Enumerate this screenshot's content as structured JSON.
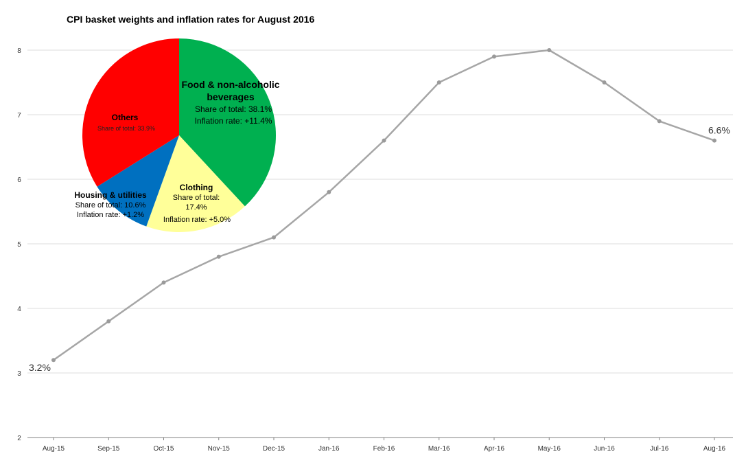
{
  "colors": {
    "line": "#a6a6a6",
    "marker": "#9a9a9a",
    "grid": "#dcdcdc",
    "axis": "#808080",
    "others": "#ff0000",
    "food": "#00b050",
    "clothing": "#ffff99",
    "housing": "#0070c0"
  },
  "chart_data": [
    {
      "type": "line",
      "title": "CPI basket weights and inflation rates for August 2016",
      "categories": [
        "Aug-15",
        "Sep-15",
        "Oct-15",
        "Nov-15",
        "Dec-15",
        "Jan-16",
        "Feb-16",
        "Mar-16",
        "Apr-16",
        "May-16",
        "Jun-16",
        "Jul-16",
        "Aug-16"
      ],
      "series": [
        {
          "values": [
            3.2,
            3.8,
            4.4,
            4.8,
            5.1,
            5.8,
            6.6,
            7.5,
            7.9,
            8.0,
            7.5,
            6.9,
            6.6
          ]
        }
      ],
      "y_ticks": [
        "2",
        "3",
        "4",
        "5",
        "6",
        "7",
        "8"
      ],
      "ylim": [
        2,
        8.6
      ],
      "grid": true,
      "first_label": "3.2%",
      "last_label": "6.6%"
    },
    {
      "type": "pie",
      "slices": [
        {
          "key": "food",
          "value": 38.1,
          "lines": [
            "Food & non-alcoholic",
            "beverages",
            "Share of total: 38.1%",
            "Inflation rate: +11.4%"
          ]
        },
        {
          "key": "clothing",
          "value": 17.4,
          "lines": [
            "Clothing",
            "Share of total:",
            "17.4%",
            "Inflation rate: +5.0%"
          ]
        },
        {
          "key": "housing",
          "value": 10.6,
          "lines": [
            "Housing & utilities",
            "Share of total: 10.6%",
            "Inflation rate: +1.2%"
          ]
        },
        {
          "key": "others",
          "value": 33.9,
          "lines": [
            "Others",
            "Share of total: 33.9%"
          ]
        }
      ]
    }
  ]
}
